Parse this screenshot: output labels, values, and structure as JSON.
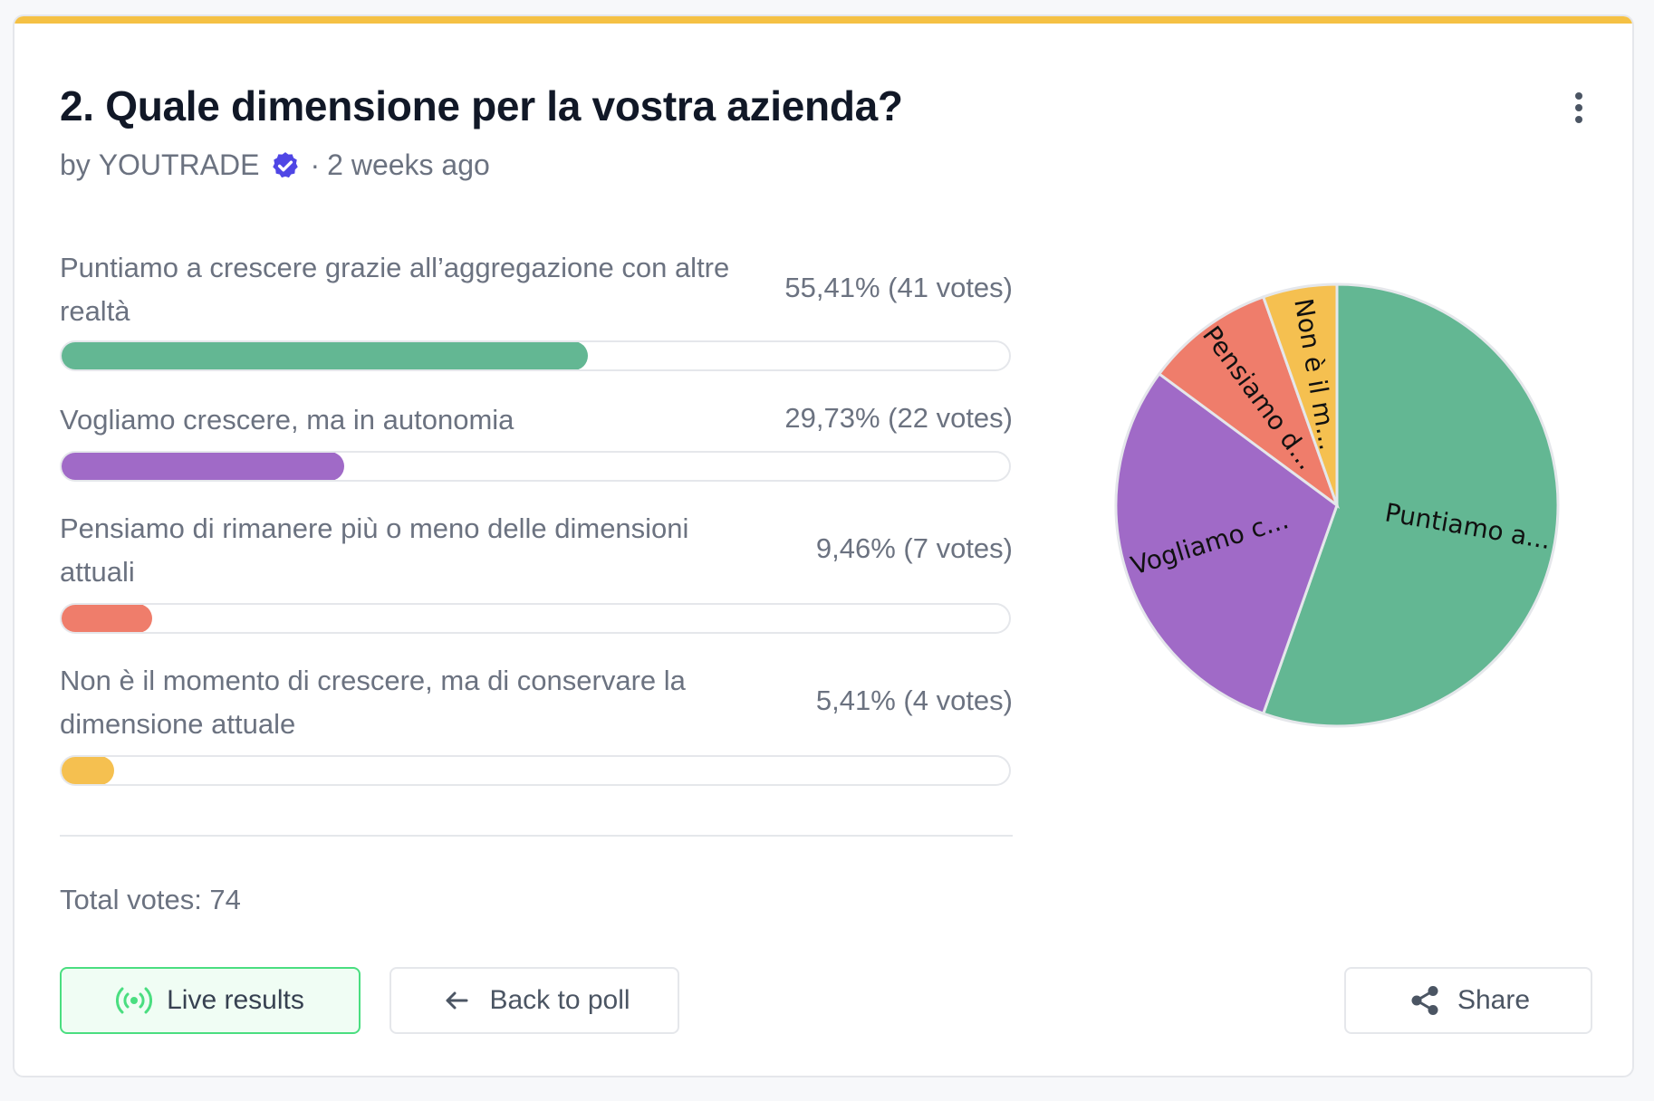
{
  "poll": {
    "title": "2. Quale dimensione per la vostra azienda?",
    "author_prefix": "by",
    "author": "YOUTRADE",
    "separator": "·",
    "time_ago": "2 weeks ago",
    "options": [
      {
        "label": "Puntiamo a crescere grazie all’aggregazione con altre realtà",
        "percent_text": "55,41% (41 votes)",
        "percent": 55.41,
        "votes": 41,
        "color": "#63b793",
        "short": "Puntiamo a..."
      },
      {
        "label": "Vogliamo crescere, ma in autonomia",
        "percent_text": "29,73% (22 votes)",
        "percent": 29.73,
        "votes": 22,
        "color": "#a06ac7",
        "short": "Vogliamo c..."
      },
      {
        "label": "Pensiamo di rimanere più o meno delle dimensioni attuali",
        "percent_text": "9,46% (7 votes)",
        "percent": 9.46,
        "votes": 7,
        "color": "#ef7d6b",
        "short": "Pensiamo d..."
      },
      {
        "label": "Non è il momento di crescere, ma di conservare la dimensione attuale",
        "percent_text": "5,41% (4 votes)",
        "percent": 5.41,
        "votes": 4,
        "color": "#f5c050",
        "short": "Non è il m..."
      }
    ],
    "total_votes_text": "Total votes: 74"
  },
  "actions": {
    "live_results": "Live results",
    "back_to_poll": "Back to poll",
    "share": "Share"
  },
  "colors": {
    "accent": "#f5c144",
    "verified": "#4f46e5",
    "live_green": "#4ade80"
  },
  "icons": {
    "verified": "verified-badge-icon",
    "menu": "kebab-menu-icon",
    "live": "broadcast-icon",
    "back": "arrow-left-icon",
    "share": "share-icon"
  },
  "chart_data": {
    "type": "pie",
    "categories": [
      "Puntiamo a crescere grazie all’aggregazione con altre realtà",
      "Vogliamo crescere, ma in autonomia",
      "Pensiamo di rimanere più o meno delle dimensioni attuali",
      "Non è il momento di crescere, ma di conservare la dimensione attuale"
    ],
    "values": [
      41,
      22,
      7,
      4
    ],
    "slice_labels": [
      "Puntiamo a...",
      "Vogliamo c...",
      "Pensiamo d...",
      "Non è il m..."
    ],
    "colors": [
      "#63b793",
      "#a06ac7",
      "#ef7d6b",
      "#f5c050"
    ]
  }
}
